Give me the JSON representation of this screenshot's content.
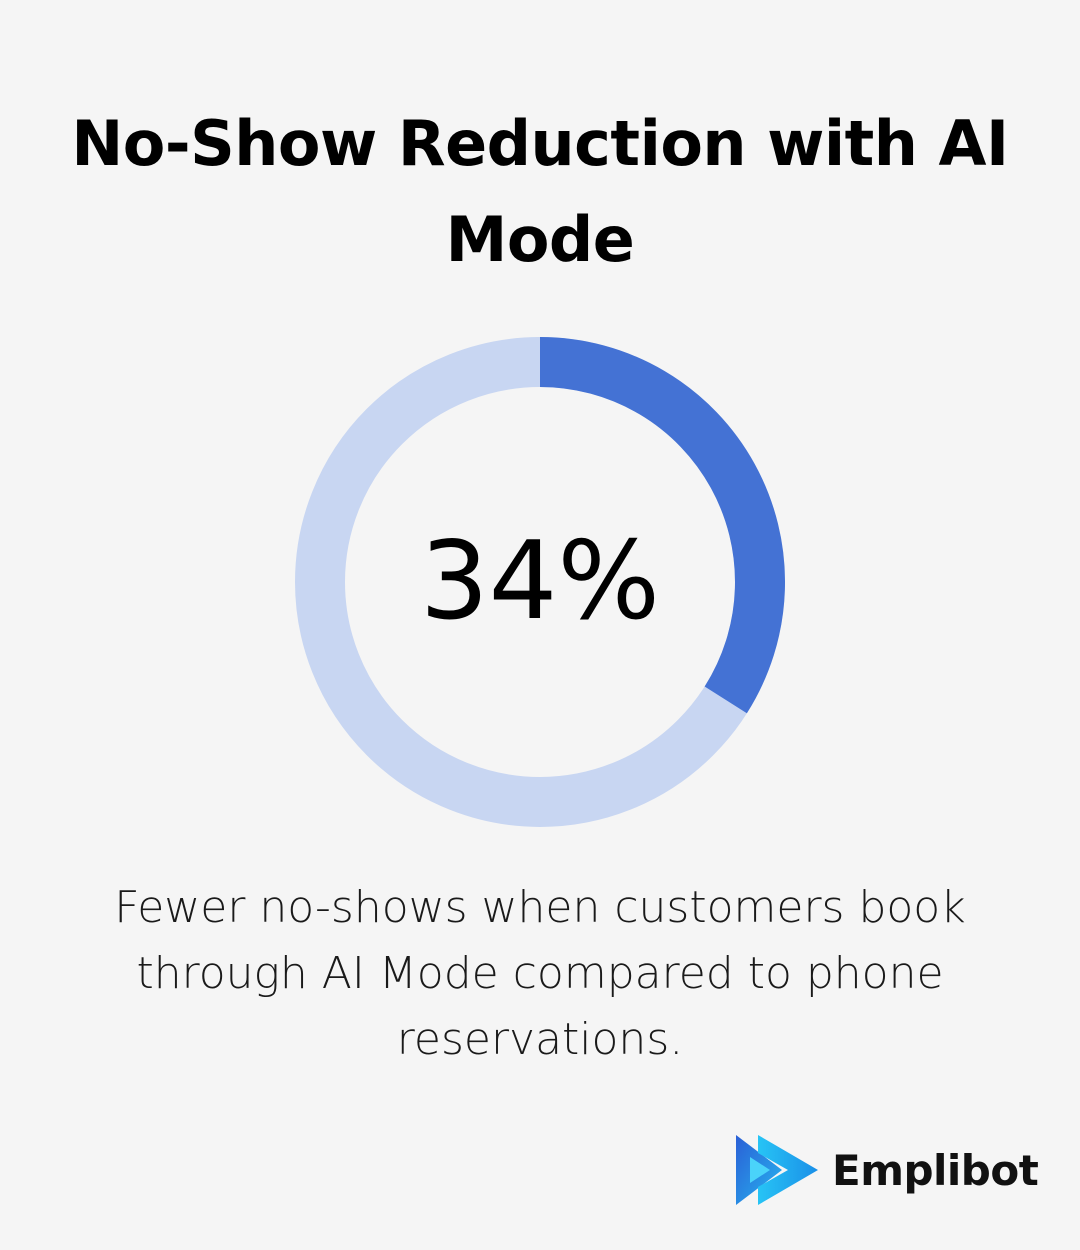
{
  "title": "No-Show Reduction with AI Mode",
  "chart_data": {
    "type": "pie",
    "value": 34,
    "value_label": "34%",
    "max": 100,
    "caption": "Fewer no-shows when customers book through AI Mode compared to phone reservations.",
    "colors": {
      "filled": "#4472d4",
      "remaining": "#c8d6f2"
    }
  },
  "brand": {
    "name": "Emplibot",
    "logo_icon": "play-arrows-icon"
  }
}
